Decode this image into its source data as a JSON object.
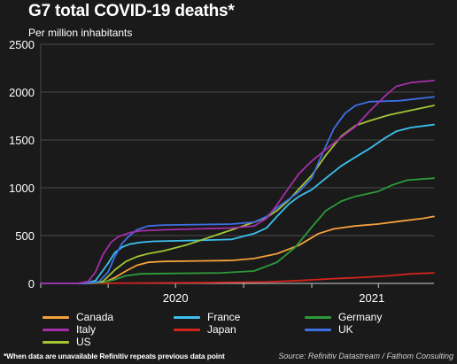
{
  "header": {
    "title": "G7 total COVID-19 deaths*",
    "subtitle": "Per million inhabitants"
  },
  "footer": {
    "footnote": "*When data are unavailable Refinitiv repeats previous data point",
    "source": "Source: Refinitiv Datastream / Fathom Consulting"
  },
  "colors": {
    "background": "#1a1a1a",
    "grid": "#4a4a4a",
    "axis": "#cfcfcf"
  },
  "chart_data": {
    "type": "line",
    "title": "G7 total COVID-19 deaths*",
    "subtitle": "Per million inhabitants",
    "xlabel": "",
    "ylabel": "",
    "x_range": [
      "2020-01-01",
      "2021-06-15"
    ],
    "ylim": [
      0,
      2500
    ],
    "yticks": [
      0,
      500,
      1000,
      1500,
      2000,
      2500
    ],
    "x_category_labels": [
      {
        "label": "2020",
        "date": "2020-07-01"
      },
      {
        "label": "2021",
        "date": "2021-03-23"
      }
    ],
    "x_tick_dates": [
      "2020-01-01",
      "2020-04-01",
      "2020-07-01",
      "2020-10-01",
      "2021-01-01",
      "2021-04-01"
    ],
    "grid": {
      "horizontal": true,
      "vertical": false
    },
    "legend": "bottom",
    "series": [
      {
        "name": "Canada",
        "color": "#f5a13a",
        "values": [
          [
            "2020-03-01",
            0
          ],
          [
            "2020-03-25",
            5
          ],
          [
            "2020-04-10",
            60
          ],
          [
            "2020-04-25",
            130
          ],
          [
            "2020-05-10",
            190
          ],
          [
            "2020-05-25",
            220
          ],
          [
            "2020-06-15",
            230
          ],
          [
            "2020-08-01",
            235
          ],
          [
            "2020-09-15",
            240
          ],
          [
            "2020-10-15",
            260
          ],
          [
            "2020-11-15",
            310
          ],
          [
            "2020-12-15",
            400
          ],
          [
            "2021-01-10",
            520
          ],
          [
            "2021-01-31",
            570
          ],
          [
            "2021-02-28",
            600
          ],
          [
            "2021-03-31",
            620
          ],
          [
            "2021-04-30",
            650
          ],
          [
            "2021-05-31",
            680
          ],
          [
            "2021-06-15",
            700
          ]
        ]
      },
      {
        "name": "France",
        "color": "#3dc0ee",
        "values": [
          [
            "2020-03-01",
            0
          ],
          [
            "2020-03-15",
            30
          ],
          [
            "2020-03-31",
            200
          ],
          [
            "2020-04-10",
            320
          ],
          [
            "2020-04-20",
            380
          ],
          [
            "2020-04-30",
            410
          ],
          [
            "2020-05-15",
            430
          ],
          [
            "2020-06-01",
            440
          ],
          [
            "2020-08-01",
            450
          ],
          [
            "2020-09-15",
            460
          ],
          [
            "2020-10-15",
            520
          ],
          [
            "2020-11-01",
            580
          ],
          [
            "2020-11-15",
            700
          ],
          [
            "2020-12-01",
            830
          ],
          [
            "2020-12-15",
            910
          ],
          [
            "2021-01-01",
            980
          ],
          [
            "2021-01-20",
            1100
          ],
          [
            "2021-02-10",
            1230
          ],
          [
            "2021-03-01",
            1320
          ],
          [
            "2021-03-20",
            1410
          ],
          [
            "2021-04-10",
            1520
          ],
          [
            "2021-04-25",
            1590
          ],
          [
            "2021-05-15",
            1630
          ],
          [
            "2021-06-15",
            1660
          ]
        ]
      },
      {
        "name": "Germany",
        "color": "#2e9a3a",
        "values": [
          [
            "2020-03-01",
            0
          ],
          [
            "2020-03-25",
            10
          ],
          [
            "2020-04-10",
            40
          ],
          [
            "2020-04-25",
            80
          ],
          [
            "2020-05-15",
            100
          ],
          [
            "2020-07-01",
            105
          ],
          [
            "2020-09-01",
            110
          ],
          [
            "2020-10-15",
            130
          ],
          [
            "2020-11-15",
            220
          ],
          [
            "2020-12-10",
            380
          ],
          [
            "2020-12-31",
            580
          ],
          [
            "2021-01-20",
            760
          ],
          [
            "2021-02-10",
            860
          ],
          [
            "2021-03-01",
            910
          ],
          [
            "2021-03-31",
            960
          ],
          [
            "2021-04-20",
            1030
          ],
          [
            "2021-05-10",
            1080
          ],
          [
            "2021-06-15",
            1100
          ]
        ]
      },
      {
        "name": "Italy",
        "color": "#a42ea8",
        "values": [
          [
            "2020-02-20",
            0
          ],
          [
            "2020-03-05",
            20
          ],
          [
            "2020-03-15",
            120
          ],
          [
            "2020-03-25",
            300
          ],
          [
            "2020-04-05",
            430
          ],
          [
            "2020-04-15",
            490
          ],
          [
            "2020-04-30",
            530
          ],
          [
            "2020-05-15",
            550
          ],
          [
            "2020-06-15",
            560
          ],
          [
            "2020-09-15",
            580
          ],
          [
            "2020-10-15",
            600
          ],
          [
            "2020-11-01",
            680
          ],
          [
            "2020-11-15",
            820
          ],
          [
            "2020-12-01",
            1000
          ],
          [
            "2020-12-15",
            1150
          ],
          [
            "2021-01-01",
            1280
          ],
          [
            "2021-01-20",
            1400
          ],
          [
            "2021-02-10",
            1530
          ],
          [
            "2021-03-01",
            1640
          ],
          [
            "2021-03-20",
            1800
          ],
          [
            "2021-04-10",
            1960
          ],
          [
            "2021-04-25",
            2060
          ],
          [
            "2021-05-15",
            2100
          ],
          [
            "2021-06-15",
            2120
          ]
        ]
      },
      {
        "name": "Japan",
        "color": "#d3241c",
        "values": [
          [
            "2020-03-01",
            0
          ],
          [
            "2020-05-01",
            4
          ],
          [
            "2020-08-01",
            7
          ],
          [
            "2020-11-01",
            15
          ],
          [
            "2020-12-15",
            30
          ],
          [
            "2021-01-31",
            50
          ],
          [
            "2021-03-15",
            65
          ],
          [
            "2021-04-15",
            80
          ],
          [
            "2021-05-15",
            100
          ],
          [
            "2021-06-15",
            110
          ]
        ]
      },
      {
        "name": "UK",
        "color": "#3f6fe6",
        "values": [
          [
            "2020-03-01",
            0
          ],
          [
            "2020-03-20",
            20
          ],
          [
            "2020-04-01",
            120
          ],
          [
            "2020-04-10",
            280
          ],
          [
            "2020-04-20",
            420
          ],
          [
            "2020-04-30",
            500
          ],
          [
            "2020-05-10",
            560
          ],
          [
            "2020-05-25",
            600
          ],
          [
            "2020-06-15",
            610
          ],
          [
            "2020-09-15",
            620
          ],
          [
            "2020-10-15",
            640
          ],
          [
            "2020-11-01",
            700
          ],
          [
            "2020-11-15",
            790
          ],
          [
            "2020-12-01",
            880
          ],
          [
            "2020-12-15",
            960
          ],
          [
            "2021-01-01",
            1100
          ],
          [
            "2021-01-15",
            1350
          ],
          [
            "2021-01-31",
            1620
          ],
          [
            "2021-02-15",
            1780
          ],
          [
            "2021-03-01",
            1860
          ],
          [
            "2021-03-20",
            1900
          ],
          [
            "2021-04-30",
            1910
          ],
          [
            "2021-06-15",
            1950
          ]
        ]
      },
      {
        "name": "US",
        "color": "#a3c634",
        "values": [
          [
            "2020-03-01",
            0
          ],
          [
            "2020-03-25",
            20
          ],
          [
            "2020-04-10",
            140
          ],
          [
            "2020-04-25",
            230
          ],
          [
            "2020-05-10",
            280
          ],
          [
            "2020-05-25",
            310
          ],
          [
            "2020-06-15",
            340
          ],
          [
            "2020-07-15",
            400
          ],
          [
            "2020-08-15",
            480
          ],
          [
            "2020-09-15",
            560
          ],
          [
            "2020-10-15",
            640
          ],
          [
            "2020-11-01",
            690
          ],
          [
            "2020-11-15",
            760
          ],
          [
            "2020-12-01",
            870
          ],
          [
            "2020-12-15",
            990
          ],
          [
            "2021-01-01",
            1130
          ],
          [
            "2021-01-20",
            1340
          ],
          [
            "2021-02-10",
            1540
          ],
          [
            "2021-03-01",
            1650
          ],
          [
            "2021-03-20",
            1700
          ],
          [
            "2021-04-15",
            1760
          ],
          [
            "2021-05-15",
            1810
          ],
          [
            "2021-06-15",
            1860
          ]
        ]
      }
    ]
  }
}
